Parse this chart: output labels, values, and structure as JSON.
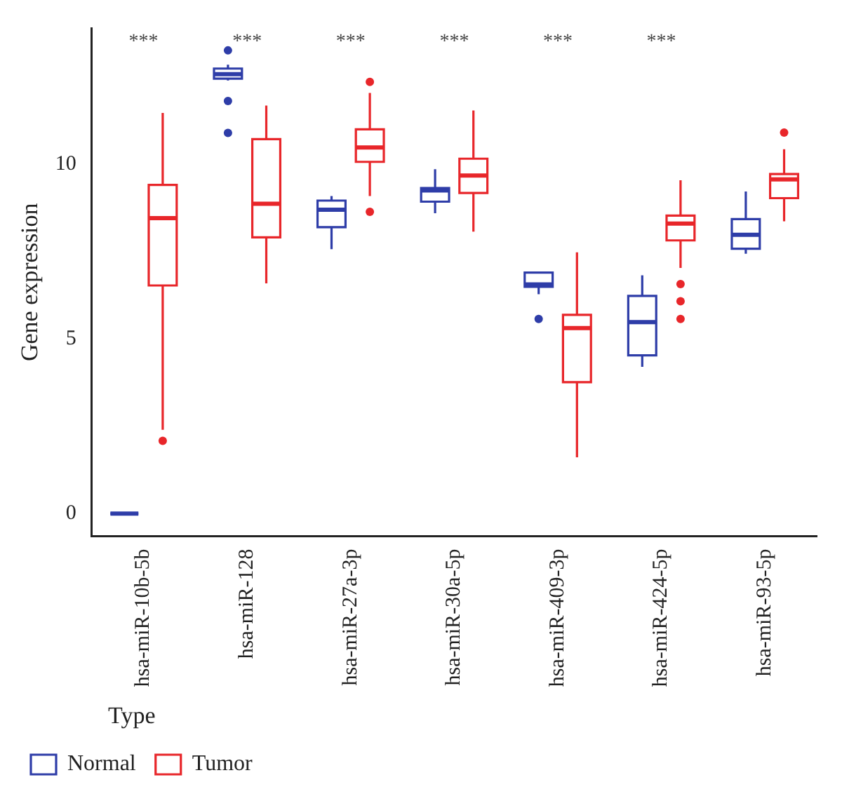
{
  "chart_data": {
    "type": "box",
    "ylabel": "Gene expression",
    "legend_title": "Type",
    "legend": "bottom left",
    "grid": false,
    "categories": [
      "hsa-miR-10b-5b",
      "hsa-miR-128",
      "hsa-miR-27a-3p",
      "hsa-miR-30a-5p",
      "hsa-miR-409-3p",
      "hsa-miR-424-5p",
      "hsa-miR-93-5p"
    ],
    "ylim": [
      -0.65,
      13.9
    ],
    "yticks": [
      0,
      5,
      10
    ],
    "series": [
      {
        "name": "Normal",
        "color": "#2e3da8",
        "boxes": [
          {
            "low": 0,
            "q1": 0,
            "median": 0,
            "q3": 0,
            "high": 0
          },
          {
            "low": 12.4,
            "q1": 12.45,
            "median": 12.58,
            "q3": 12.74,
            "high": 12.85,
            "outliers": [
              13.26,
              11.81,
              10.9
            ]
          },
          {
            "low": 7.57,
            "q1": 8.2,
            "median": 8.7,
            "q3": 8.96,
            "high": 9.09
          },
          {
            "low": 8.6,
            "q1": 8.93,
            "median": 9.25,
            "q3": 9.32,
            "high": 9.86
          },
          {
            "low": 6.28,
            "q1": 6.49,
            "median": 6.56,
            "q3": 6.9,
            "high": 6.9,
            "outliers": [
              5.57
            ]
          },
          {
            "low": 4.2,
            "q1": 4.53,
            "median": 5.48,
            "q3": 6.23,
            "high": 6.82
          },
          {
            "low": 7.44,
            "q1": 7.58,
            "median": 7.98,
            "q3": 8.43,
            "high": 9.22
          }
        ]
      },
      {
        "name": "Tumor",
        "color": "#e8262a",
        "boxes": [
          {
            "low": 2.4,
            "q1": 6.53,
            "median": 8.46,
            "q3": 9.41,
            "high": 11.47,
            "outliers": [
              2.08
            ]
          },
          {
            "low": 6.59,
            "q1": 7.91,
            "median": 8.87,
            "q3": 10.72,
            "high": 11.68
          },
          {
            "low": 9.09,
            "q1": 10.07,
            "median": 10.48,
            "q3": 11.0,
            "high": 12.04,
            "outliers": [
              12.36,
              8.64
            ]
          },
          {
            "low": 8.07,
            "q1": 9.18,
            "median": 9.68,
            "q3": 10.16,
            "high": 11.54
          },
          {
            "low": 1.61,
            "q1": 3.76,
            "median": 5.31,
            "q3": 5.69,
            "high": 7.48
          },
          {
            "low": 7.03,
            "q1": 7.82,
            "median": 8.3,
            "q3": 8.53,
            "high": 9.54,
            "outliers": [
              6.57,
              6.08,
              5.57
            ]
          },
          {
            "low": 8.37,
            "q1": 9.03,
            "median": 9.57,
            "q3": 9.72,
            "high": 10.43,
            "outliers": [
              10.91
            ]
          }
        ]
      }
    ],
    "annotations": [
      "***",
      "***",
      "***",
      "***",
      "***",
      "***"
    ]
  }
}
